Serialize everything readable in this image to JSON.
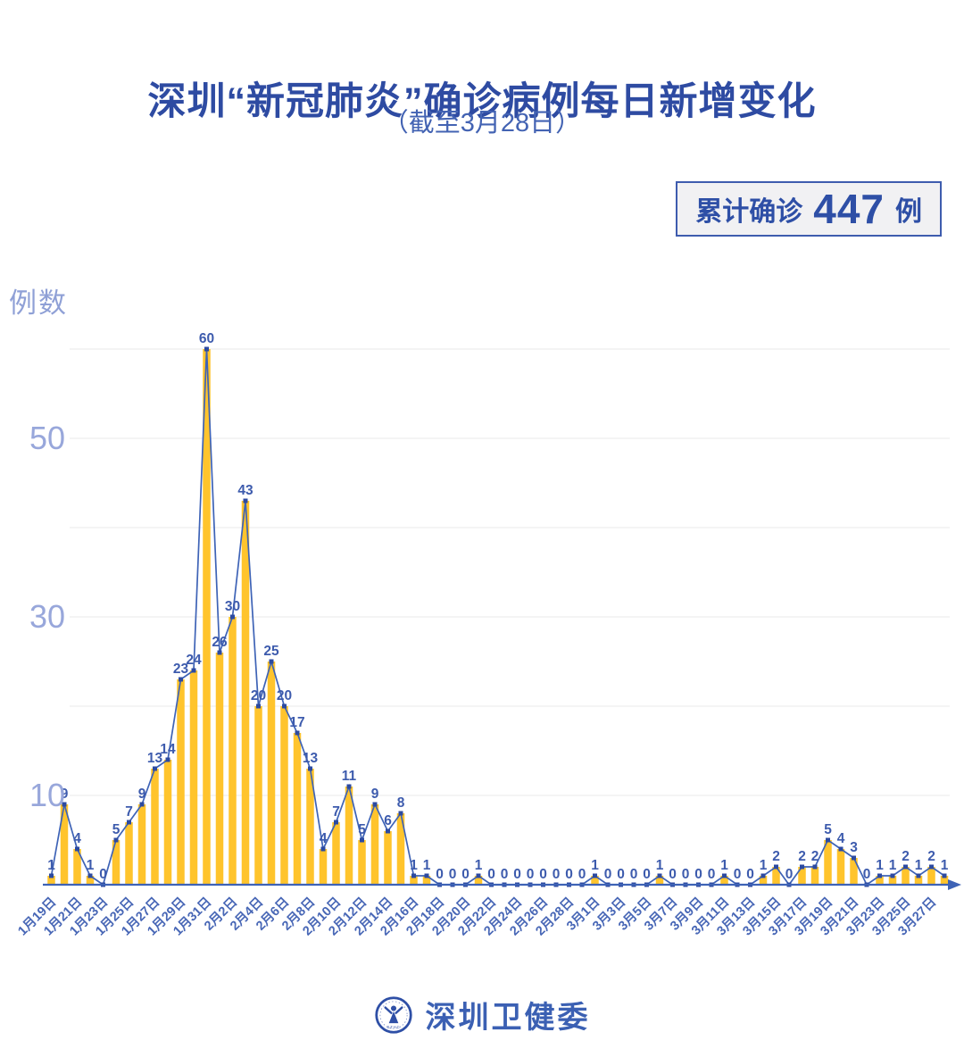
{
  "header": {
    "title": "深圳“新冠肺炎”确诊病例每日新增变化",
    "subtitle": "（截至3月28日）"
  },
  "summary_badge": {
    "prefix": "累计确诊",
    "value": "447",
    "unit": "例"
  },
  "footer": {
    "brand": "深圳卫健委",
    "logo": "shenzhen-health-commission-emblem"
  },
  "colors": {
    "title_blue": "#2E4BA2",
    "accent_blue": "#3D5BAD",
    "tick_blue": "#98A7DB",
    "date_blue": "#4867B6",
    "bar_yellow": "#FFC42C",
    "line_blue": "#3E63B6",
    "marker_blue": "#2C4AA0",
    "gridline_gray": "#EAEAEA",
    "badge_bg": "#F1F1F3"
  },
  "chart_data": {
    "type": "bar+line",
    "title": "深圳“新冠肺炎”确诊病例每日新增变化（截至3月28日）",
    "xlabel": "",
    "ylabel": "例数",
    "ylim": [
      0,
      62
    ],
    "yticks_labeled": [
      10,
      30,
      50
    ],
    "gridlines": [
      10,
      20,
      30,
      40,
      50,
      60
    ],
    "legend": "none",
    "x_tick_every": 2,
    "categories": [
      "1月19日",
      "1月20日",
      "1月21日",
      "1月22日",
      "1月23日",
      "1月24日",
      "1月25日",
      "1月26日",
      "1月27日",
      "1月28日",
      "1月29日",
      "1月30日",
      "1月31日",
      "2月1日",
      "2月2日",
      "2月3日",
      "2月4日",
      "2月5日",
      "2月6日",
      "2月7日",
      "2月8日",
      "2月9日",
      "2月10日",
      "2月11日",
      "2月12日",
      "2月13日",
      "2月14日",
      "2月15日",
      "2月16日",
      "2月17日",
      "2月18日",
      "2月19日",
      "2月20日",
      "2月21日",
      "2月22日",
      "2月23日",
      "2月24日",
      "2月25日",
      "2月26日",
      "2月27日",
      "2月28日",
      "2月29日",
      "3月1日",
      "3月2日",
      "3月3日",
      "3月4日",
      "3月5日",
      "3月6日",
      "3月7日",
      "3月8日",
      "3月9日",
      "3月10日",
      "3月11日",
      "3月12日",
      "3月13日",
      "3月14日",
      "3月15日",
      "3月16日",
      "3月17日",
      "3月18日",
      "3月19日",
      "3月20日",
      "3月21日",
      "3月22日",
      "3月23日",
      "3月24日",
      "3月25日",
      "3月26日",
      "3月27日",
      "3月28日"
    ],
    "values": [
      1,
      9,
      4,
      1,
      0,
      5,
      7,
      9,
      13,
      14,
      23,
      24,
      60,
      26,
      30,
      43,
      20,
      25,
      20,
      17,
      13,
      4,
      7,
      11,
      5,
      9,
      6,
      8,
      1,
      1,
      0,
      0,
      0,
      1,
      0,
      0,
      0,
      0,
      0,
      0,
      0,
      0,
      1,
      0,
      0,
      0,
      0,
      1,
      0,
      0,
      0,
      0,
      1,
      0,
      0,
      1,
      2,
      0,
      2,
      2,
      5,
      4,
      3,
      0,
      1,
      1,
      2,
      1,
      2,
      1
    ],
    "x_tick_labels": [
      "1月19日",
      "1月21日",
      "1月23日",
      "1月25日",
      "1月27日",
      "1月29日",
      "1月31日",
      "2月2日",
      "2月4日",
      "2月6日",
      "2月8日",
      "2月10日",
      "2月12日",
      "2月14日",
      "2月16日",
      "2月18日",
      "2月20日",
      "2月22日",
      "2月24日",
      "2月26日",
      "2月28日",
      "3月1日",
      "3月3日",
      "3月5日",
      "3月7日",
      "3月9日",
      "3月11日",
      "3月13日",
      "3月15日",
      "3月17日",
      "3月19日",
      "3月21日",
      "3月23日",
      "3月25日",
      "3月27日"
    ]
  }
}
